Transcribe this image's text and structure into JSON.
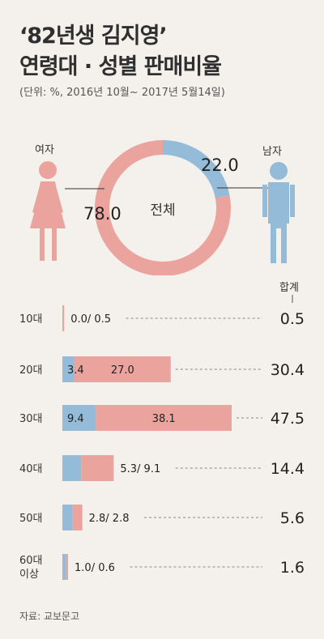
{
  "title_line1": "‘82년생 김지영’",
  "title_line2": "연령대 · 성별 판매비율",
  "subtitle": "(단위: %, 2016년 10월~ 2017년 5월14일)",
  "source": "자료: 교보문고",
  "colors": {
    "female": "#eba39d",
    "male": "#94bcd8",
    "text": "#333333",
    "background": "#f4f1ec"
  },
  "chart_data": [
    {
      "type": "pie",
      "center_label": "전체",
      "slices": [
        {
          "label": "남자",
          "value": 22.0,
          "color": "#94bcd8"
        },
        {
          "label": "여자",
          "value": 78.0,
          "color": "#eba39d"
        }
      ]
    },
    {
      "type": "bar",
      "stacked": true,
      "orientation": "horizontal",
      "total_header": "합계",
      "categories": [
        "10대",
        "20대",
        "30대",
        "40대",
        "50대",
        "60대 이상"
      ],
      "series": [
        {
          "name": "남자",
          "color": "#94bcd8",
          "values": [
            0.0,
            3.4,
            9.4,
            5.3,
            2.8,
            1.0
          ]
        },
        {
          "name": "여자",
          "color": "#eba39d",
          "values": [
            0.5,
            27.0,
            38.1,
            9.1,
            2.8,
            0.6
          ]
        }
      ],
      "totals": [
        0.5,
        30.4,
        47.5,
        14.4,
        5.6,
        1.6
      ],
      "segment_labels": [
        "0.0/ 0.5",
        "",
        "",
        "5.3/ 9.1",
        "2.8/ 2.8",
        "1.0/ 0.6"
      ],
      "male_labels": [
        "",
        "3.4",
        "9.4",
        "",
        "",
        ""
      ],
      "female_labels": [
        "",
        "27.0",
        "38.1",
        "",
        "",
        ""
      ]
    }
  ]
}
